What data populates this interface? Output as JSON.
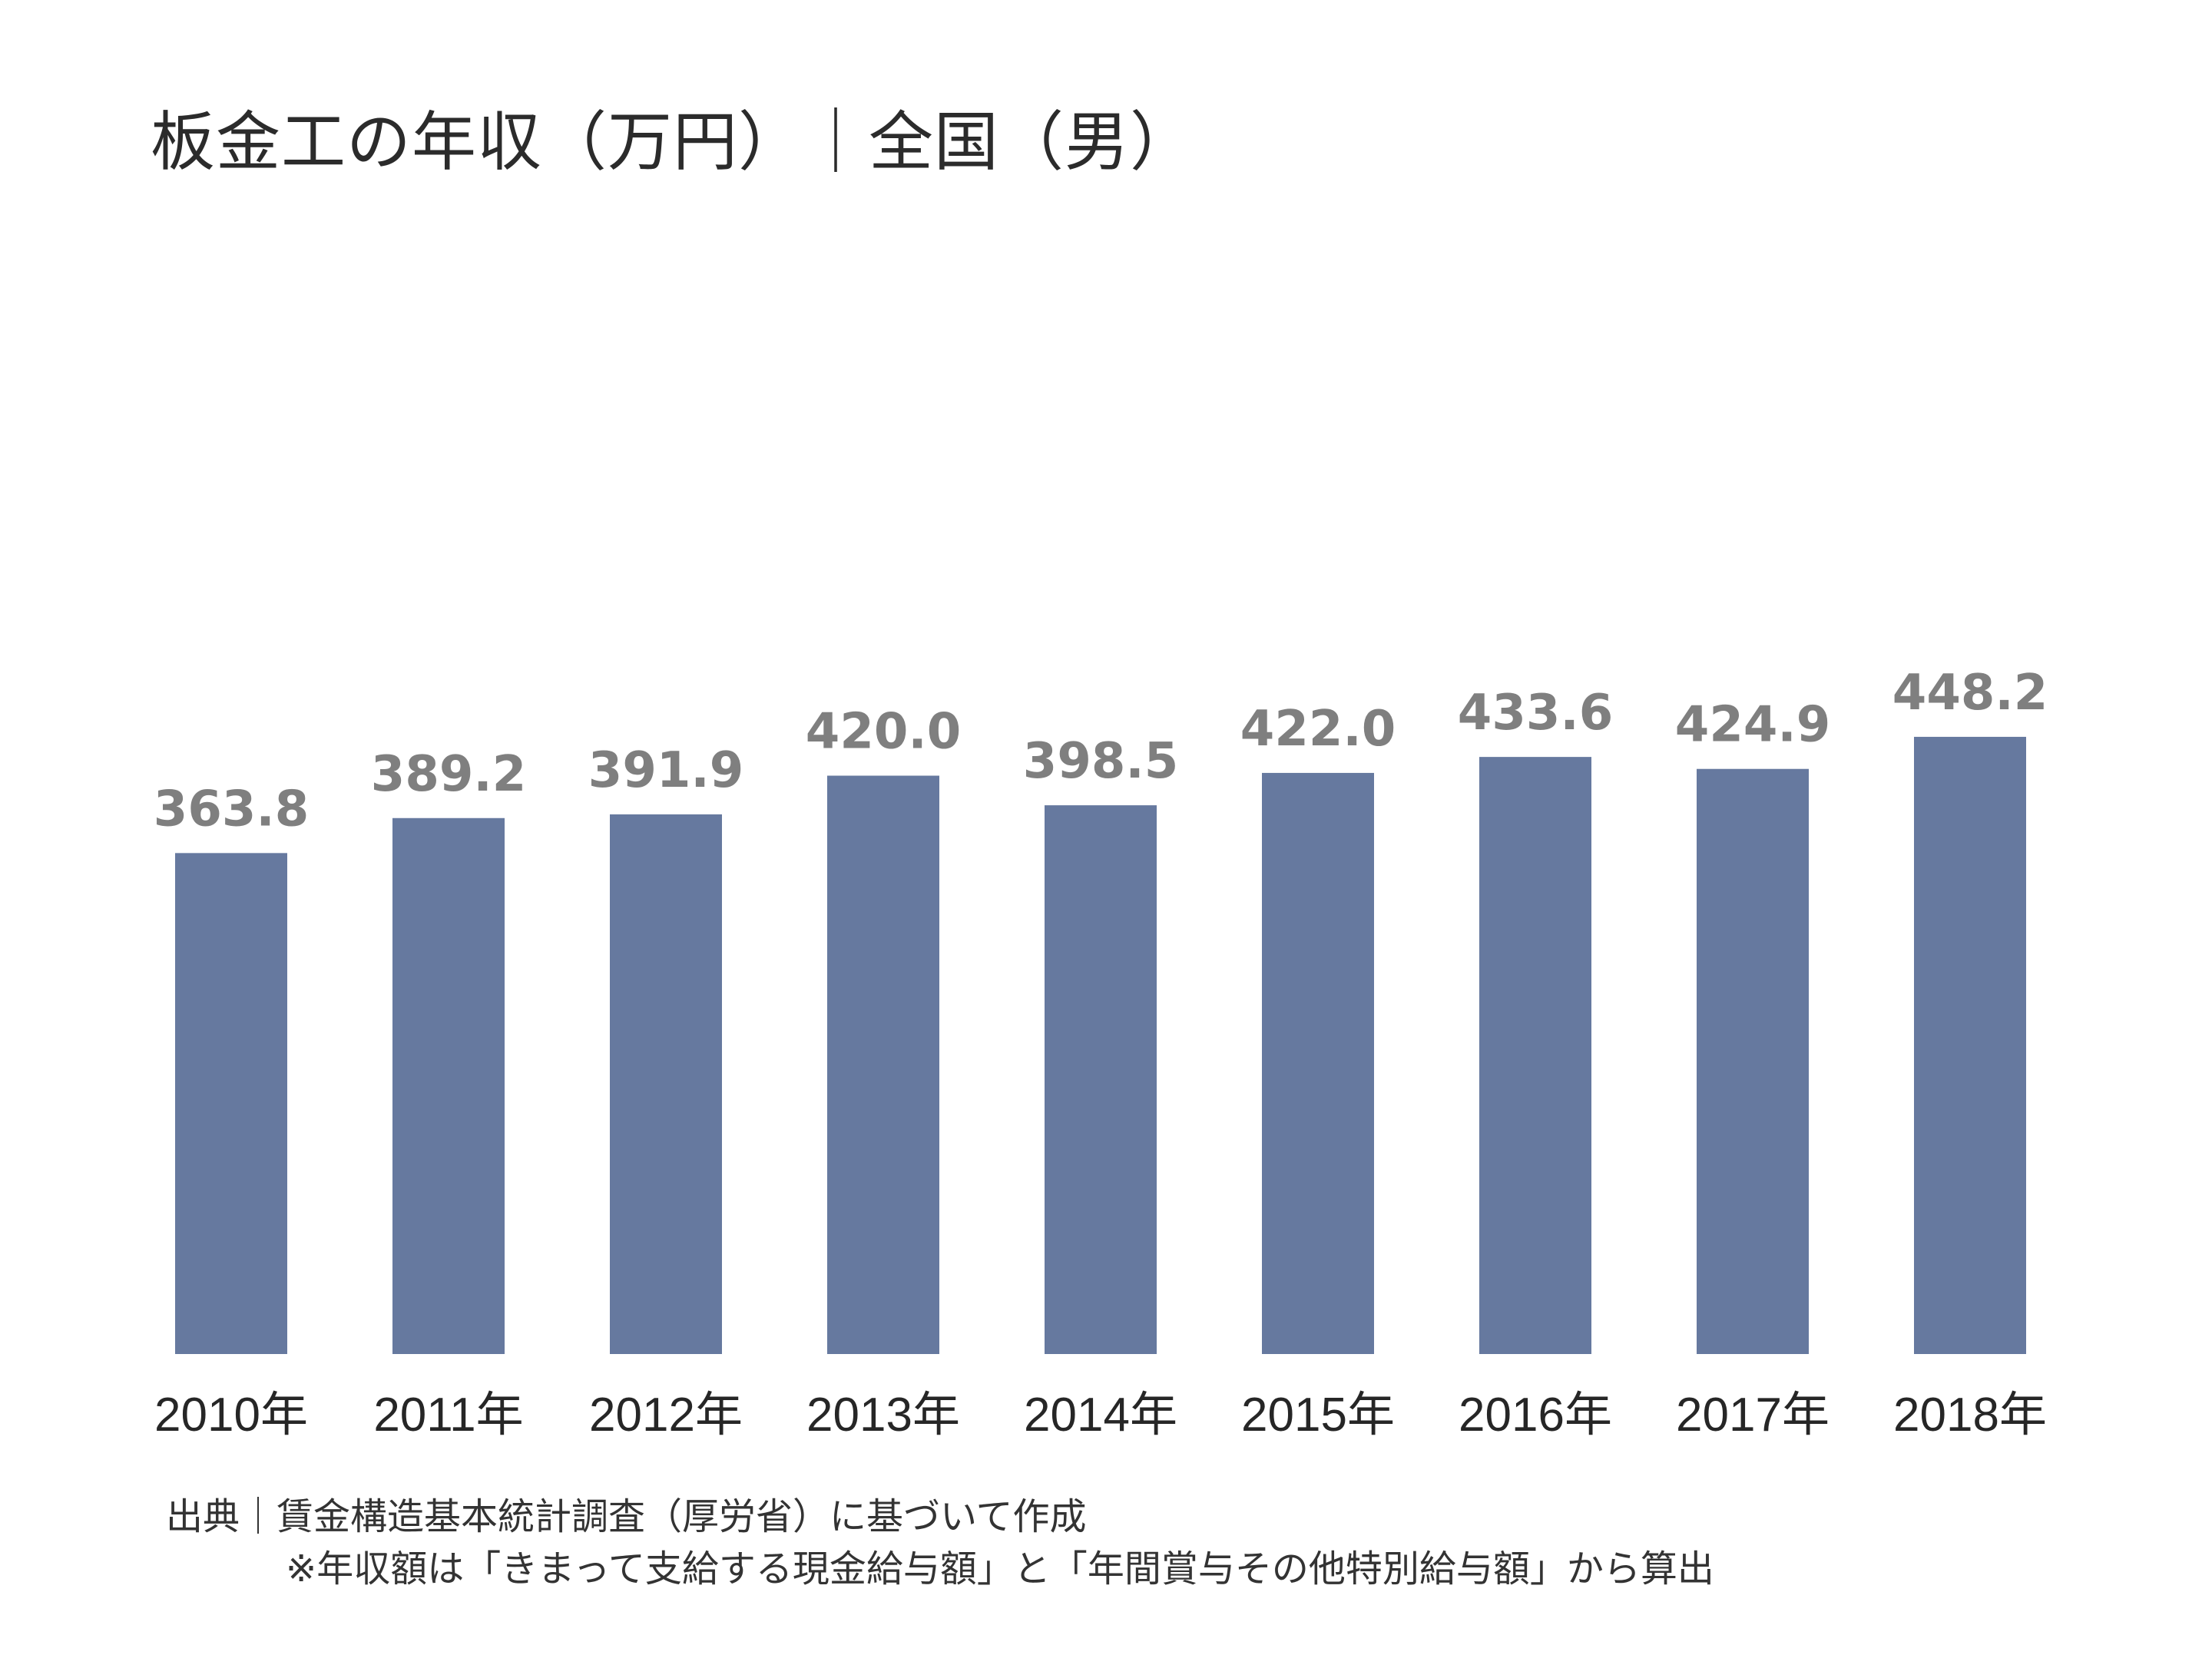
{
  "chart_data": {
    "type": "bar",
    "title": "板金工の年収（万円）｜全国（男）",
    "categories": [
      "2010年",
      "2011年",
      "2012年",
      "2013年",
      "2014年",
      "2015年",
      "2016年",
      "2017年",
      "2018年"
    ],
    "values": [
      363.8,
      389.2,
      391.9,
      420.0,
      398.5,
      422.0,
      433.6,
      424.9,
      448.2
    ],
    "value_labels": [
      "363.8",
      "389.2",
      "391.9",
      "420.0",
      "398.5",
      "422.0",
      "433.6",
      "424.9",
      "448.2"
    ],
    "xlabel": "",
    "ylabel": "",
    "ylim": [
      0,
      500
    ],
    "grid": false,
    "legend": "none",
    "bar_color": "#66799f",
    "label_color": "#7f7f7f"
  },
  "footer": {
    "source": "出典｜賃金構造基本統計調査（厚労省）に基づいて作成",
    "note": "※年収額は「きまって支給する現金給与額」と「年間賞与その他特別給与額」から算出"
  }
}
